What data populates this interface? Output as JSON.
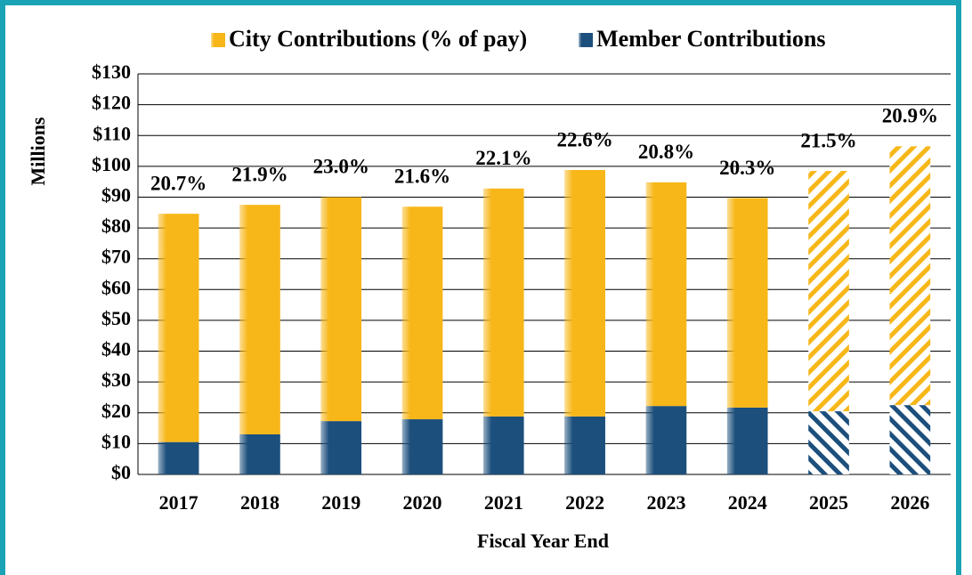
{
  "chart_data": {
    "type": "stacked_bar",
    "categories": [
      "2017",
      "2018",
      "2019",
      "2020",
      "2021",
      "2022",
      "2023",
      "2024",
      "2025",
      "2026"
    ],
    "series": [
      {
        "name": "Member Contributions",
        "color": "#1c4f7c",
        "values": [
          10.5,
          13,
          17.3,
          17.9,
          18.8,
          18.8,
          22.2,
          21.7,
          20.5,
          22.5
        ]
      },
      {
        "name": "City Contributions (% of pay)",
        "color": "#f7b719",
        "values": [
          74.1,
          74.5,
          72.7,
          69,
          74,
          80,
          72.6,
          68,
          78,
          84
        ]
      }
    ],
    "bar_labels": [
      "20.7%",
      "21.9%",
      "23.0%",
      "21.6%",
      "22.1%",
      "22.6%",
      "20.8%",
      "20.3%",
      "21.5%",
      "20.9%"
    ],
    "hatched": [
      false,
      false,
      false,
      false,
      false,
      false,
      false,
      false,
      true,
      true
    ],
    "ylabel": "Millions",
    "xlabel": "Fiscal Year End",
    "ylim": [
      0,
      130
    ],
    "yticks": [
      {
        "value": 0,
        "label": "$0"
      },
      {
        "value": 10,
        "label": "$10"
      },
      {
        "value": 20,
        "label": "$20"
      },
      {
        "value": 30,
        "label": "$30"
      },
      {
        "value": 40,
        "label": "$40"
      },
      {
        "value": 50,
        "label": "$50"
      },
      {
        "value": 60,
        "label": "$60"
      },
      {
        "value": 70,
        "label": "$70"
      },
      {
        "value": 80,
        "label": "$80"
      },
      {
        "value": 90,
        "label": "$90"
      },
      {
        "value": 100,
        "label": "$100"
      },
      {
        "value": 110,
        "label": "$110"
      },
      {
        "value": 120,
        "label": "$120"
      },
      {
        "value": 130,
        "label": "$130"
      }
    ],
    "grid": true,
    "legend": "top"
  }
}
